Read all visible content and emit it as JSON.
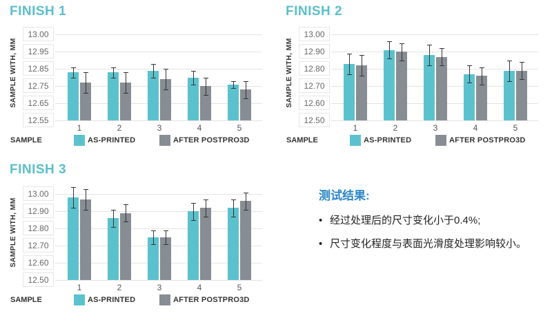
{
  "colors": {
    "as_printed": "#5bc2cd",
    "after_postpro3d": "#878d93",
    "title": "#5bbfcc",
    "results_heading": "#2a86c9"
  },
  "legend": {
    "sample_label": "SAMPLE",
    "series_a": "AS-PRINTED",
    "series_b": "AFTER POSTPRO3D"
  },
  "y_axis_label": "SAMPLE WITH, MM",
  "results": {
    "heading": "测试结果:",
    "bullets": [
      "经过处理后的尺寸变化小于0.4%;",
      "尺寸变化程度与表面光滑度处理影响较小。"
    ]
  },
  "chart_data": [
    {
      "type": "bar",
      "title": "FINISH 1",
      "xlabel": "SAMPLE",
      "ylabel": "SAMPLE WITH, MM",
      "categories": [
        "1",
        "2",
        "3",
        "4",
        "5"
      ],
      "yticks": [
        "13.00",
        "12.95",
        "12.85",
        "12.75",
        "12.65",
        "12.55"
      ],
      "series": [
        {
          "name": "AS-PRINTED",
          "values": [
            12.83,
            12.83,
            12.84,
            12.8,
            12.76
          ],
          "error": [
            0.03,
            0.03,
            0.04,
            0.04,
            0.02
          ]
        },
        {
          "name": "AFTER POSTPRO3D",
          "values": [
            12.77,
            12.77,
            12.79,
            12.75,
            12.73
          ],
          "error": [
            0.06,
            0.06,
            0.06,
            0.05,
            0.05
          ]
        }
      ],
      "legend_position": "bottom",
      "grid": true
    },
    {
      "type": "bar",
      "title": "FINISH 2",
      "xlabel": "SAMPLE",
      "ylabel": "SAMPLE WITH, MM",
      "categories": [
        "1",
        "2",
        "3",
        "4",
        "5"
      ],
      "yticks": [
        "13.00",
        "12.90",
        "12.80",
        "12.70",
        "12.60",
        "12.50"
      ],
      "ylim": [
        12.5,
        13.0
      ],
      "series": [
        {
          "name": "AS-PRINTED",
          "values": [
            12.83,
            12.91,
            12.88,
            12.77,
            12.79
          ],
          "error": [
            0.06,
            0.05,
            0.06,
            0.05,
            0.06
          ]
        },
        {
          "name": "AFTER POSTPRO3D",
          "values": [
            12.82,
            12.9,
            12.87,
            12.76,
            12.79
          ],
          "error": [
            0.06,
            0.05,
            0.05,
            0.05,
            0.05
          ]
        }
      ],
      "legend_position": "bottom",
      "grid": true
    },
    {
      "type": "bar",
      "title": "FINISH 3",
      "xlabel": "SAMPLE",
      "ylabel": "SAMPLE WITH, MM",
      "categories": [
        "1",
        "2",
        "3",
        "4",
        "5"
      ],
      "yticks": [
        "13.00",
        "12.90",
        "12.80",
        "12.70",
        "12.60",
        "12.50"
      ],
      "ylim": [
        12.5,
        13.0
      ],
      "series": [
        {
          "name": "AS-PRINTED",
          "values": [
            12.98,
            12.86,
            12.75,
            12.9,
            12.92
          ],
          "error": [
            0.06,
            0.05,
            0.04,
            0.05,
            0.05
          ]
        },
        {
          "name": "AFTER POSTPRO3D",
          "values": [
            12.97,
            12.89,
            12.75,
            12.92,
            12.96
          ],
          "error": [
            0.06,
            0.05,
            0.04,
            0.05,
            0.05
          ]
        }
      ],
      "legend_position": "bottom",
      "grid": true
    }
  ]
}
